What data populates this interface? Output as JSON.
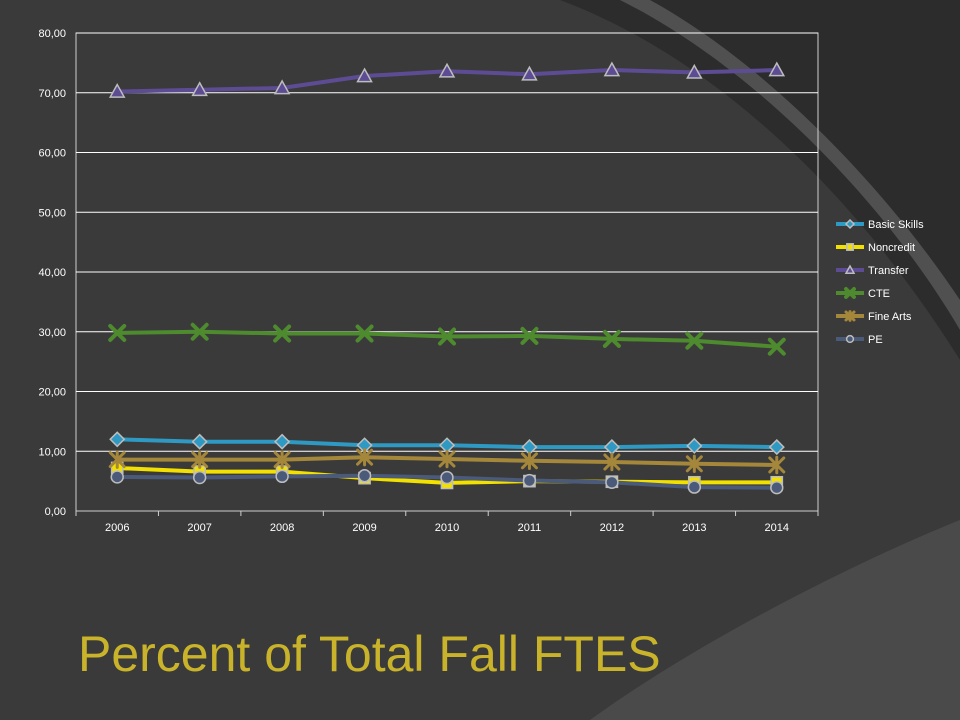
{
  "slide": {
    "title": "Percent of Total Fall FTES"
  },
  "colors": {
    "background": "#3a3a3a",
    "title": "#c9b32a",
    "plot_border": "#cfcfcf",
    "grid": "#ffffff"
  },
  "chart_data": {
    "type": "line",
    "title": "",
    "xlabel": "",
    "ylabel": "",
    "categories": [
      "2006",
      "2007",
      "2008",
      "2009",
      "2010",
      "2011",
      "2012",
      "2013",
      "2014"
    ],
    "ylim": [
      0,
      80
    ],
    "y_ticks": [
      "0,00",
      "10,00",
      "20,00",
      "30,00",
      "40,00",
      "50,00",
      "60,00",
      "70,00",
      "80,00"
    ],
    "grid": true,
    "legend_position": "right",
    "series": [
      {
        "name": "Basic Skills",
        "color": "#2e9ac4",
        "marker": "diamond",
        "values": [
          12.0,
          11.6,
          11.6,
          11.0,
          11.0,
          10.7,
          10.7,
          10.9,
          10.7
        ]
      },
      {
        "name": "Noncredit",
        "color": "#f2e000",
        "marker": "square",
        "values": [
          7.2,
          6.6,
          6.6,
          5.5,
          4.7,
          5.0,
          4.9,
          4.8,
          4.8
        ]
      },
      {
        "name": "Transfer",
        "color": "#5d4c94",
        "marker": "triangle",
        "values": [
          70.2,
          70.5,
          70.8,
          72.8,
          73.6,
          73.1,
          73.8,
          73.4,
          73.8
        ]
      },
      {
        "name": "CTE",
        "color": "#4e8a2e",
        "marker": "x",
        "values": [
          29.8,
          30.0,
          29.7,
          29.7,
          29.2,
          29.3,
          28.8,
          28.5,
          27.5
        ]
      },
      {
        "name": "Fine Arts",
        "color": "#a4873a",
        "marker": "star",
        "values": [
          8.6,
          8.6,
          8.6,
          9.0,
          8.7,
          8.4,
          8.2,
          7.9,
          7.7
        ]
      },
      {
        "name": "PE",
        "color": "#4a5a78",
        "marker": "circle",
        "values": [
          5.7,
          5.6,
          5.8,
          5.9,
          5.6,
          5.1,
          4.8,
          4.0,
          3.9
        ]
      }
    ]
  }
}
